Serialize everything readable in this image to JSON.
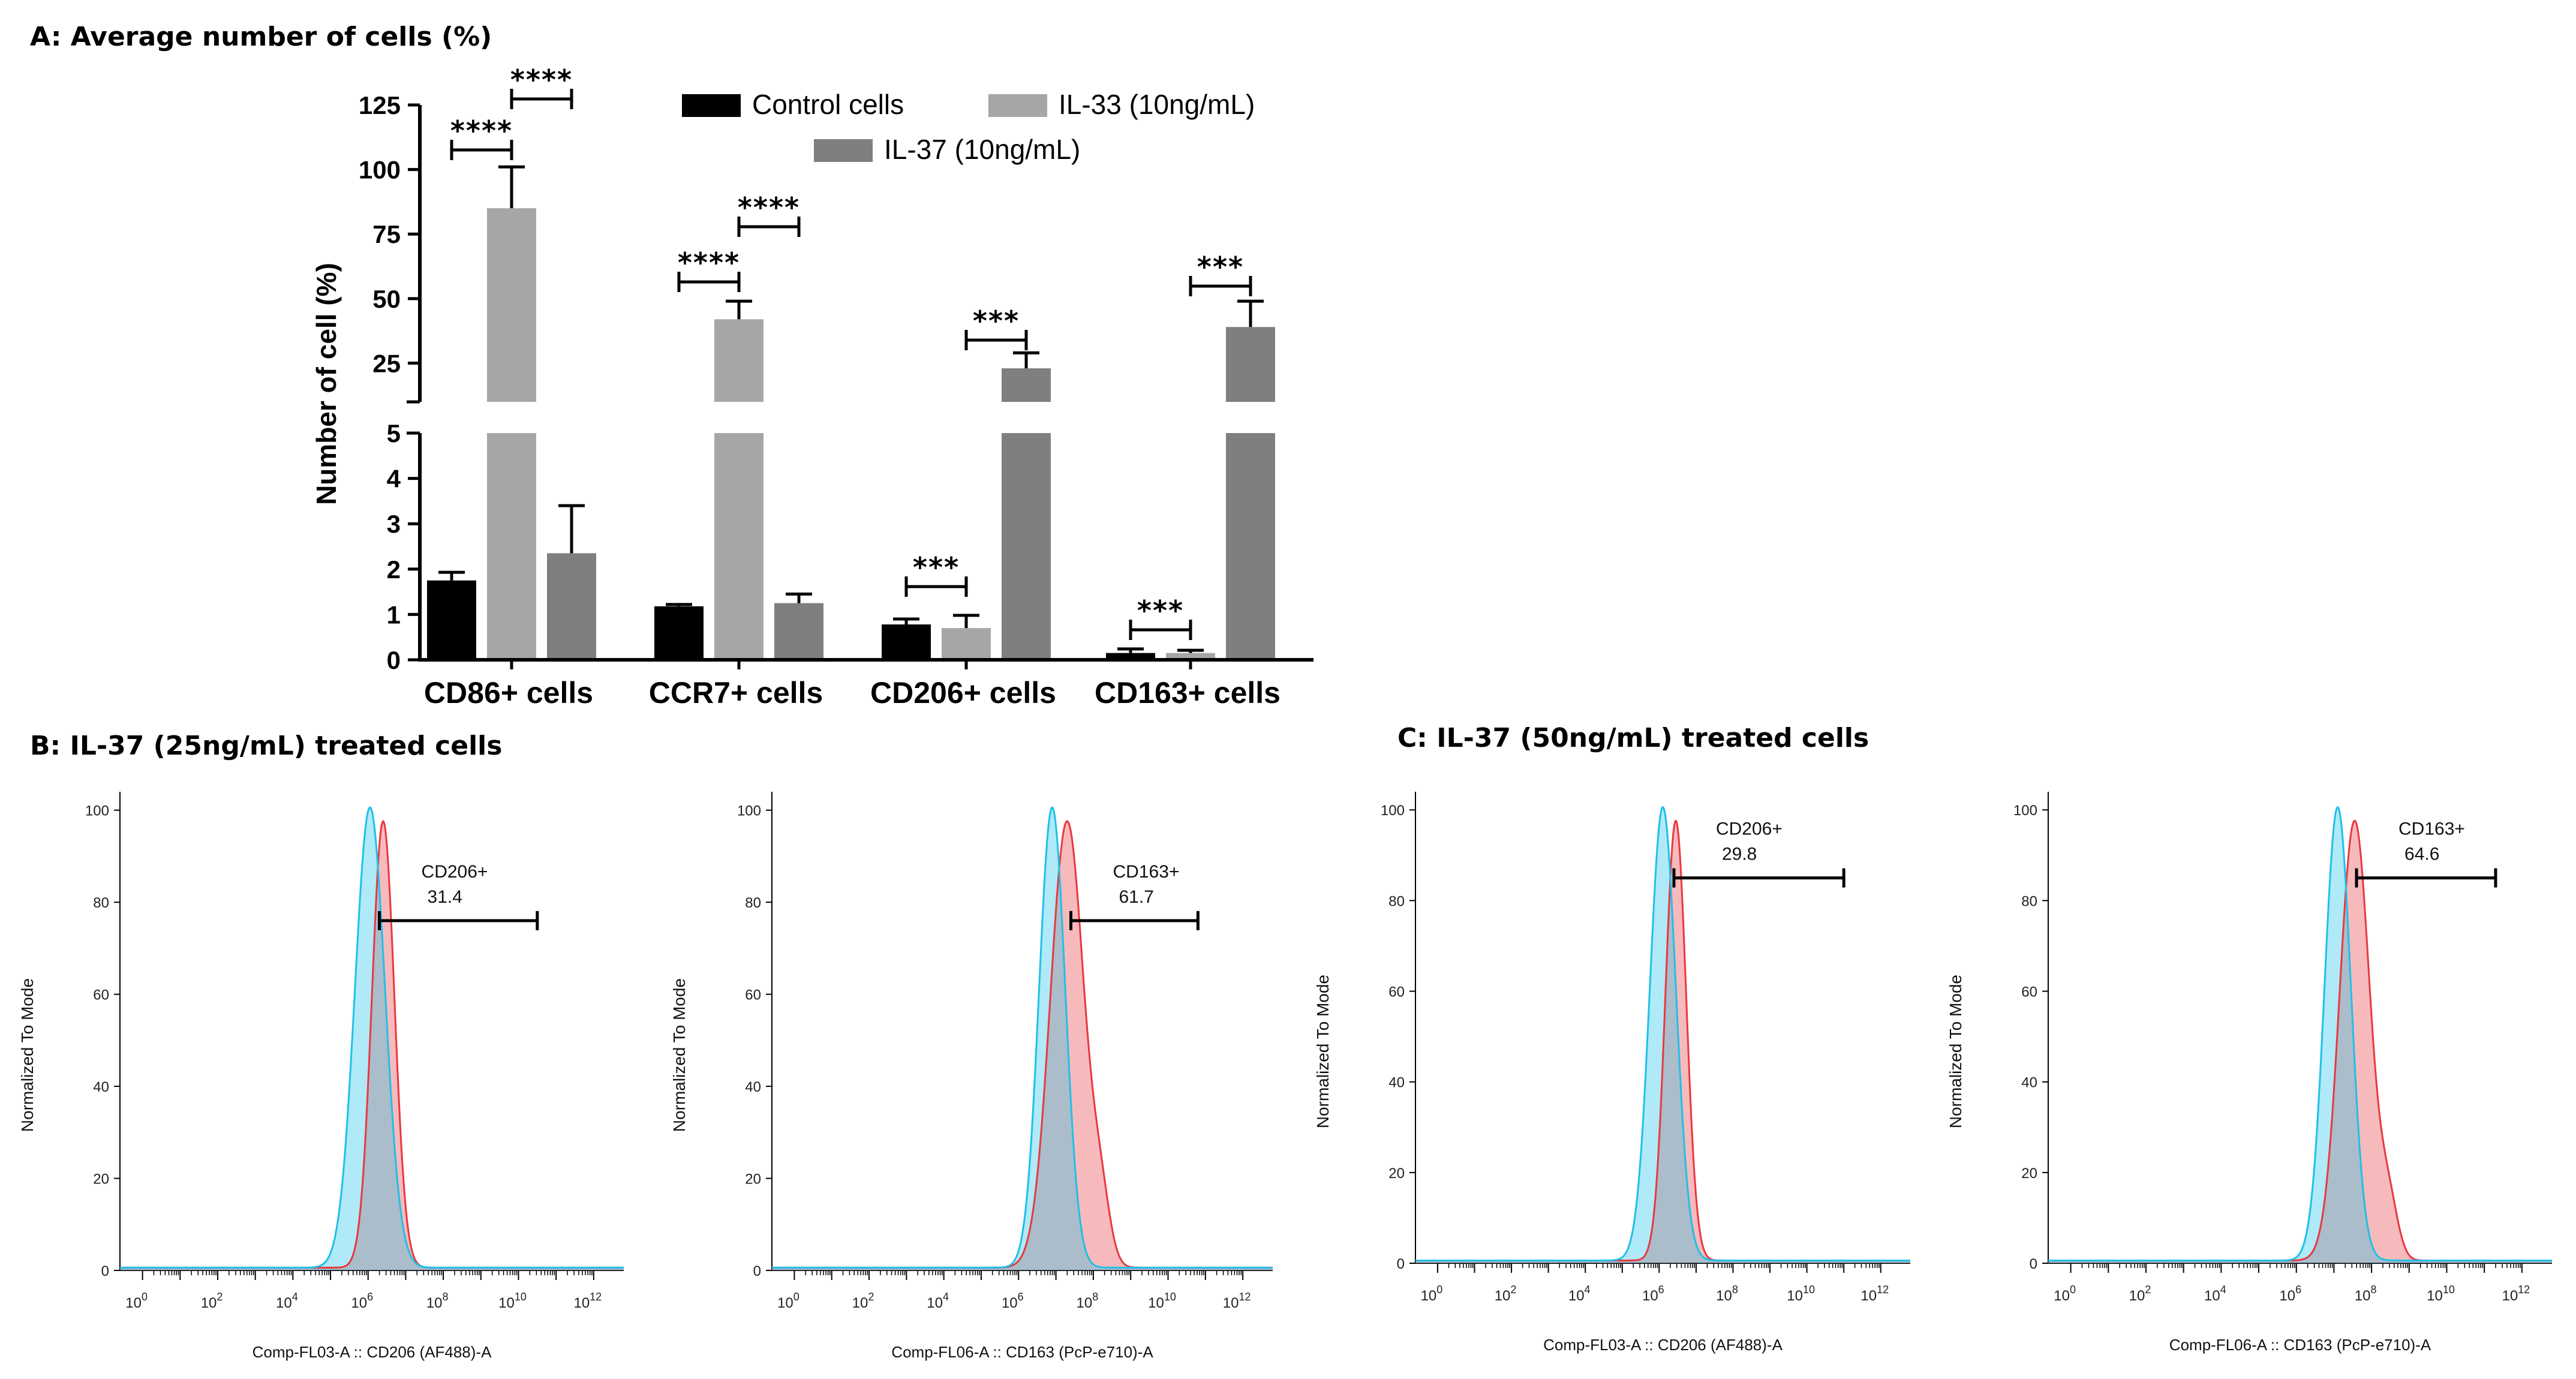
{
  "panel_a": {
    "title": "A: Average number of cells (%)",
    "ylabel": "Number of cell (%)",
    "legend": [
      {
        "name": "Control cells",
        "color": "#000000"
      },
      {
        "name": "IL-33  (10ng/mL)",
        "color": "#a6a6a8"
      },
      {
        "name": "IL-37  (10ng/mL)",
        "color": "#7f7f7f"
      }
    ],
    "lower_ticks": [
      "0",
      "1",
      "2",
      "3",
      "4",
      "5"
    ],
    "upper_ticks": [
      "25",
      "50",
      "75",
      "100",
      "125"
    ]
  },
  "panel_b": {
    "title": "B: IL-37 (25ng/mL) treated cells"
  },
  "panel_c": {
    "title": "C: IL-37 (50ng/mL) treated cells"
  },
  "chart_data": [
    {
      "type": "bar",
      "title": "A: Average number of cells (%)",
      "xlabel": "",
      "ylabel": "Number of cell (%)",
      "y_axis": "broken",
      "ylim_lower": [
        0,
        5
      ],
      "ylim_upper": [
        10,
        125
      ],
      "categories": [
        "CD86+ cells",
        "CCR7+ cells",
        "CD206+ cells",
        "CD163+ cells"
      ],
      "series": [
        {
          "name": "Control cells",
          "values": [
            1.75,
            1.18,
            0.78,
            0.15
          ],
          "errors": [
            0.18,
            0.04,
            0.12,
            0.09
          ]
        },
        {
          "name": "IL-33  (10ng/mL)",
          "values": [
            85,
            42,
            0.7,
            0.15
          ],
          "errors": [
            16,
            7,
            0.28,
            0.06
          ]
        },
        {
          "name": "IL-37  (10ng/mL)",
          "values": [
            2.35,
            1.25,
            23,
            39
          ],
          "errors": [
            1.05,
            0.2,
            6,
            10
          ]
        }
      ],
      "significance": [
        {
          "category": "CD86+ cells",
          "pair": [
            "Control cells",
            "IL-33  (10ng/mL)"
          ],
          "label": "****"
        },
        {
          "category": "CD86+ cells",
          "pair": [
            "IL-33  (10ng/mL)",
            "IL-37  (10ng/mL)"
          ],
          "label": "****"
        },
        {
          "category": "CCR7+ cells",
          "pair": [
            "Control cells",
            "IL-33  (10ng/mL)"
          ],
          "label": "****"
        },
        {
          "category": "CCR7+ cells",
          "pair": [
            "IL-33  (10ng/mL)",
            "IL-37  (10ng/mL)"
          ],
          "label": "****"
        },
        {
          "category": "CD206+ cells",
          "pair": [
            "Control cells",
            "IL-33  (10ng/mL)"
          ],
          "label": "***"
        },
        {
          "category": "CD206+ cells",
          "pair": [
            "IL-33  (10ng/mL)",
            "IL-37  (10ng/mL)"
          ],
          "label": "***"
        },
        {
          "category": "CD163+ cells",
          "pair": [
            "Control cells",
            "IL-33  (10ng/mL)"
          ],
          "label": "***"
        },
        {
          "category": "CD163+ cells",
          "pair": [
            "IL-33  (10ng/mL)",
            "IL-37  (10ng/mL)"
          ],
          "label": "***"
        }
      ],
      "legend_position": "top-right"
    },
    {
      "type": "area",
      "group": "B",
      "xlabel": "Comp-FL03-A :: CD206 (AF488)-A",
      "ylabel": "Normalized To Mode",
      "x_scale": "log",
      "x_ticks": [
        "0",
        "2",
        "4",
        "6",
        "8",
        "10",
        "12"
      ],
      "y_ticks": [
        "0",
        "20",
        "40",
        "60",
        "80",
        "100"
      ],
      "gate": {
        "label": "CD206+",
        "value": "31.4",
        "x_range": [
          6.3,
          10.5
        ],
        "y": 76
      },
      "series": [
        {
          "name": "control",
          "color": "#1ec0e8",
          "peak_x": 6.05,
          "peak_y": 100,
          "width": 0.4
        },
        {
          "name": "treated",
          "color": "#e8383f",
          "peak_x": 6.4,
          "peak_y": 97,
          "width": 0.3
        }
      ]
    },
    {
      "type": "area",
      "group": "B",
      "xlabel": "Comp-FL06-A :: CD163 (PcP-e710)-A",
      "ylabel": "Normalized To Mode",
      "x_scale": "log",
      "x_ticks": [
        "0",
        "2",
        "4",
        "6",
        "8",
        "10",
        "12"
      ],
      "y_ticks": [
        "0",
        "20",
        "40",
        "60",
        "80",
        "100"
      ],
      "gate": {
        "label": "CD163+",
        "value": "61.7",
        "x_range": [
          7.4,
          10.8
        ],
        "y": 76
      },
      "series": [
        {
          "name": "control",
          "color": "#1ec0e8",
          "peak_x": 6.9,
          "peak_y": 100,
          "width": 0.35
        },
        {
          "name": "treated",
          "color": "#e8383f",
          "peak_x": 7.3,
          "peak_y": 97,
          "width": 0.45
        }
      ]
    },
    {
      "type": "area",
      "group": "C",
      "xlabel": "Comp-FL03-A :: CD206 (AF488)-A",
      "ylabel": "Normalized To Mode",
      "x_scale": "log",
      "x_ticks": [
        "0",
        "2",
        "4",
        "6",
        "8",
        "10",
        "12"
      ],
      "y_ticks": [
        "0",
        "20",
        "40",
        "60",
        "80",
        "100"
      ],
      "gate": {
        "label": "CD206+",
        "value": "29.8",
        "x_range": [
          6.4,
          11.0
        ],
        "y": 85
      },
      "series": [
        {
          "name": "control",
          "color": "#1ec0e8",
          "peak_x": 6.1,
          "peak_y": 100,
          "width": 0.35
        },
        {
          "name": "treated",
          "color": "#e8383f",
          "peak_x": 6.45,
          "peak_y": 97,
          "width": 0.28
        }
      ]
    },
    {
      "type": "area",
      "group": "C",
      "xlabel": "Comp-FL06-A :: CD163 (PcP-e710)-A",
      "ylabel": "Normalized To Mode",
      "x_scale": "log",
      "x_ticks": [
        "0",
        "2",
        "4",
        "6",
        "8",
        "10",
        "12"
      ],
      "y_ticks": [
        "0",
        "20",
        "40",
        "60",
        "80",
        "100"
      ],
      "gate": {
        "label": "CD163+",
        "value": "64.6",
        "x_range": [
          7.6,
          11.3
        ],
        "y": 85
      },
      "series": [
        {
          "name": "control",
          "color": "#1ec0e8",
          "peak_x": 7.1,
          "peak_y": 100,
          "width": 0.35
        },
        {
          "name": "treated",
          "color": "#e8383f",
          "peak_x": 7.55,
          "peak_y": 97,
          "width": 0.4
        }
      ]
    }
  ]
}
